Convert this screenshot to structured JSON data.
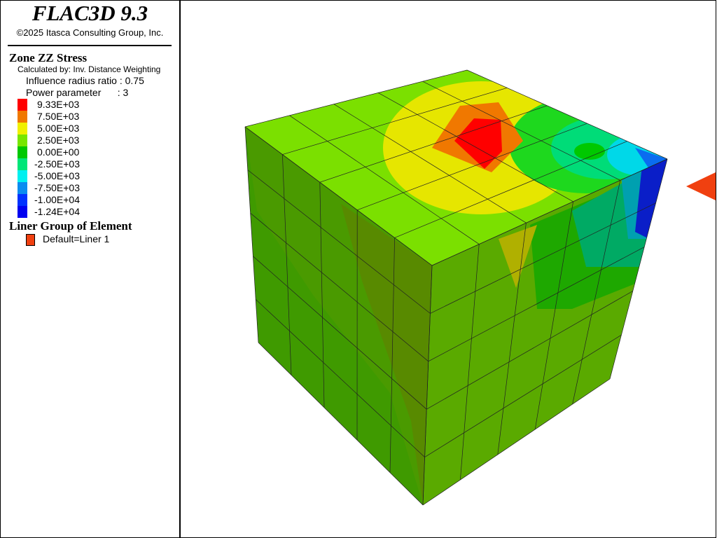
{
  "header": {
    "title": "FLAC3D 9.3",
    "copyright": "©2025 Itasca Consulting Group, Inc."
  },
  "legend": {
    "title": "Zone ZZ Stress",
    "method": "Calculated by: Inv. Distance Weighting",
    "params": [
      "Influence radius ratio : 0.75",
      "Power parameter      : 3"
    ],
    "levels": [
      {
        "label": "9.33E+03",
        "color": "#ff0000"
      },
      {
        "label": "7.50E+03",
        "color": "#f07800"
      },
      {
        "label": "5.00E+03",
        "color": "#f0f000"
      },
      {
        "label": "2.50E+03",
        "color": "#78e600"
      },
      {
        "label": "0.00E+00",
        "color": "#00c800"
      },
      {
        "label": "-2.50E+03",
        "color": "#00e678"
      },
      {
        "label": "-5.00E+03",
        "color": "#00f0f0"
      },
      {
        "label": "-7.50E+03",
        "color": "#0a8cf0"
      },
      {
        "label": "-1.00E+04",
        "color": "#0032ff"
      },
      {
        "label": "-1.24E+04",
        "color": "#0000f0"
      }
    ],
    "liner_title": "Liner Group of Element",
    "liner_entries": [
      {
        "label": "Default=Liner 1",
        "color": "#f04010"
      }
    ]
  }
}
